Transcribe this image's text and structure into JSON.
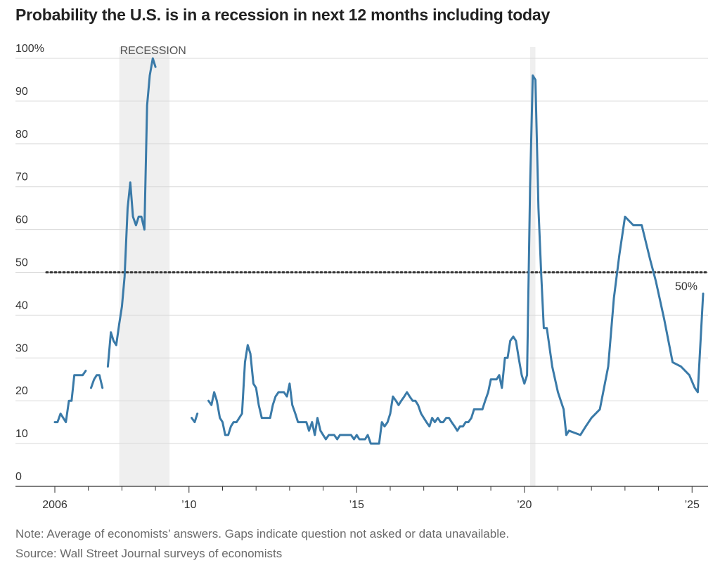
{
  "chart_data": {
    "type": "line",
    "title": "Probability the U.S. is in a recession in next 12 months including today",
    "y_unit_label": "100%",
    "ylim": [
      0,
      100
    ],
    "y_ticks": [
      0,
      10,
      20,
      30,
      40,
      50,
      60,
      70,
      80,
      90,
      100
    ],
    "x_ticks": [
      {
        "year": 2006,
        "label": "2006"
      },
      {
        "year": 2010,
        "label": "’10"
      },
      {
        "year": 2015,
        "label": "’15"
      },
      {
        "year": 2020,
        "label": "’20"
      },
      {
        "year": 2025,
        "label": "’25"
      }
    ],
    "xlim": [
      2005.75,
      2025.4
    ],
    "grid": true,
    "threshold": {
      "value": 50,
      "label": "50%",
      "style": "dotted"
    },
    "recessions": [
      {
        "start": 2007.92,
        "end": 2009.42,
        "label": "RECESSION"
      },
      {
        "start": 2020.17,
        "end": 2020.33,
        "label": ""
      }
    ],
    "line_color": "#3a7aa8",
    "series": [
      {
        "segments": [
          [
            [
              2006.0,
              15
            ],
            [
              2006.08,
              15
            ],
            [
              2006.17,
              17
            ],
            [
              2006.25,
              16
            ],
            [
              2006.33,
              15
            ],
            [
              2006.42,
              20
            ],
            [
              2006.5,
              20
            ],
            [
              2006.58,
              26
            ],
            [
              2006.67,
              26
            ],
            [
              2006.75,
              26
            ],
            [
              2006.83,
              26
            ],
            [
              2006.92,
              27
            ]
          ],
          [
            [
              2007.08,
              23
            ],
            [
              2007.17,
              25
            ],
            [
              2007.25,
              26
            ],
            [
              2007.33,
              26
            ],
            [
              2007.42,
              23
            ]
          ],
          [
            [
              2007.58,
              28
            ],
            [
              2007.67,
              36
            ],
            [
              2007.75,
              34
            ],
            [
              2007.83,
              33
            ],
            [
              2007.92,
              38
            ],
            [
              2008.0,
              42
            ],
            [
              2008.08,
              49
            ],
            [
              2008.17,
              65
            ],
            [
              2008.25,
              71
            ],
            [
              2008.33,
              63
            ],
            [
              2008.42,
              61
            ],
            [
              2008.5,
              63
            ],
            [
              2008.58,
              63
            ],
            [
              2008.67,
              60
            ],
            [
              2008.75,
              89
            ],
            [
              2008.83,
              96
            ],
            [
              2008.92,
              100
            ],
            [
              2009.0,
              98
            ]
          ],
          [
            [
              2010.08,
              16
            ],
            [
              2010.17,
              15
            ],
            [
              2010.25,
              17
            ]
          ],
          [
            [
              2010.58,
              20
            ],
            [
              2010.67,
              19
            ],
            [
              2010.75,
              22
            ],
            [
              2010.83,
              20
            ],
            [
              2010.92,
              16
            ],
            [
              2011.0,
              15
            ],
            [
              2011.08,
              12
            ],
            [
              2011.17,
              12
            ],
            [
              2011.25,
              14
            ],
            [
              2011.33,
              15
            ],
            [
              2011.42,
              15
            ],
            [
              2011.5,
              16
            ],
            [
              2011.58,
              17
            ],
            [
              2011.67,
              29
            ],
            [
              2011.75,
              33
            ],
            [
              2011.83,
              31
            ],
            [
              2011.92,
              24
            ],
            [
              2012.0,
              23
            ],
            [
              2012.08,
              19
            ],
            [
              2012.17,
              16
            ],
            [
              2012.25,
              16
            ],
            [
              2012.33,
              16
            ],
            [
              2012.42,
              16
            ],
            [
              2012.5,
              19
            ],
            [
              2012.58,
              21
            ],
            [
              2012.67,
              22
            ],
            [
              2012.75,
              22
            ],
            [
              2012.83,
              22
            ],
            [
              2012.92,
              21
            ],
            [
              2013.0,
              24
            ],
            [
              2013.08,
              19
            ],
            [
              2013.17,
              17
            ],
            [
              2013.25,
              15
            ],
            [
              2013.33,
              15
            ],
            [
              2013.42,
              15
            ],
            [
              2013.5,
              15
            ],
            [
              2013.58,
              13
            ],
            [
              2013.67,
              15
            ],
            [
              2013.75,
              12
            ],
            [
              2013.83,
              16
            ],
            [
              2013.92,
              13
            ],
            [
              2014.0,
              12
            ],
            [
              2014.08,
              11
            ],
            [
              2014.17,
              12
            ],
            [
              2014.25,
              12
            ],
            [
              2014.33,
              12
            ],
            [
              2014.42,
              11
            ],
            [
              2014.5,
              12
            ],
            [
              2014.58,
              12
            ],
            [
              2014.67,
              12
            ],
            [
              2014.75,
              12
            ],
            [
              2014.83,
              12
            ],
            [
              2014.92,
              11
            ],
            [
              2015.0,
              12
            ],
            [
              2015.08,
              11
            ],
            [
              2015.17,
              11
            ],
            [
              2015.25,
              11
            ],
            [
              2015.33,
              12
            ],
            [
              2015.42,
              10
            ],
            [
              2015.5,
              10
            ],
            [
              2015.58,
              10
            ],
            [
              2015.67,
              10
            ],
            [
              2015.75,
              15
            ],
            [
              2015.83,
              14
            ],
            [
              2015.92,
              15
            ],
            [
              2016.0,
              17
            ],
            [
              2016.08,
              21
            ],
            [
              2016.17,
              20
            ],
            [
              2016.25,
              19
            ],
            [
              2016.33,
              20
            ],
            [
              2016.42,
              21
            ],
            [
              2016.5,
              22
            ],
            [
              2016.58,
              21
            ],
            [
              2016.67,
              20
            ],
            [
              2016.75,
              20
            ],
            [
              2016.83,
              19
            ],
            [
              2016.92,
              17
            ],
            [
              2017.0,
              16
            ],
            [
              2017.08,
              15
            ],
            [
              2017.17,
              14
            ],
            [
              2017.25,
              16
            ],
            [
              2017.33,
              15
            ],
            [
              2017.42,
              16
            ],
            [
              2017.5,
              15
            ],
            [
              2017.58,
              15
            ],
            [
              2017.67,
              16
            ],
            [
              2017.75,
              16
            ],
            [
              2017.83,
              15
            ],
            [
              2017.92,
              14
            ],
            [
              2018.0,
              13
            ],
            [
              2018.08,
              14
            ],
            [
              2018.17,
              14
            ],
            [
              2018.25,
              15
            ],
            [
              2018.33,
              15
            ],
            [
              2018.42,
              16
            ],
            [
              2018.5,
              18
            ],
            [
              2018.58,
              18
            ],
            [
              2018.67,
              18
            ],
            [
              2018.75,
              18
            ],
            [
              2018.83,
              20
            ],
            [
              2018.92,
              22
            ],
            [
              2019.0,
              25
            ],
            [
              2019.08,
              25
            ],
            [
              2019.17,
              25
            ],
            [
              2019.25,
              26
            ],
            [
              2019.33,
              23
            ],
            [
              2019.42,
              30
            ],
            [
              2019.5,
              30
            ],
            [
              2019.58,
              34
            ],
            [
              2019.67,
              35
            ],
            [
              2019.75,
              34
            ],
            [
              2019.83,
              30
            ],
            [
              2019.92,
              26
            ],
            [
              2020.0,
              24
            ],
            [
              2020.08,
              26
            ],
            [
              2020.17,
              70
            ],
            [
              2020.25,
              96
            ],
            [
              2020.33,
              95
            ],
            [
              2020.42,
              65
            ],
            [
              2020.5,
              50
            ],
            [
              2020.58,
              37
            ],
            [
              2020.67,
              37
            ],
            [
              2020.83,
              28
            ],
            [
              2021.0,
              22
            ],
            [
              2021.17,
              18
            ],
            [
              2021.25,
              12
            ],
            [
              2021.33,
              13
            ],
            [
              2021.5,
              12.5
            ],
            [
              2021.67,
              12
            ],
            [
              2021.83,
              14
            ],
            [
              2022.0,
              16
            ],
            [
              2022.25,
              18
            ],
            [
              2022.5,
              28
            ],
            [
              2022.67,
              44
            ],
            [
              2022.83,
              54
            ],
            [
              2023.0,
              63
            ],
            [
              2023.25,
              61
            ],
            [
              2023.5,
              61
            ],
            [
              2023.75,
              53
            ],
            [
              2023.92,
              48
            ],
            [
              2024.17,
              39
            ],
            [
              2024.42,
              29
            ],
            [
              2024.67,
              28
            ],
            [
              2024.92,
              26
            ],
            [
              2025.08,
              23
            ],
            [
              2025.17,
              22
            ],
            [
              2025.33,
              45
            ]
          ]
        ]
      }
    ]
  },
  "footer": {
    "note": "Note: Average of economists’ answers. Gaps indicate question not asked or data unavailable.",
    "source": "Source: Wall Street Journal surveys of economists"
  }
}
